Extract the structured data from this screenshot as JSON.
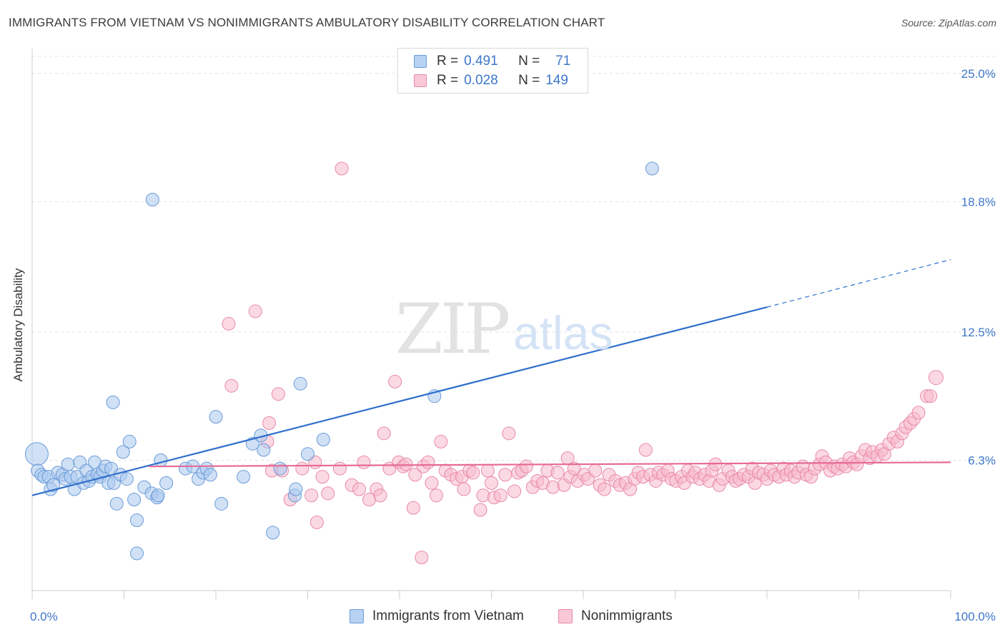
{
  "title": "IMMIGRANTS FROM VIETNAM VS NONIMMIGRANTS AMBULATORY DISABILITY CORRELATION CHART",
  "source": "Source: ZipAtlas.com",
  "watermark": {
    "zip": "ZIP",
    "atlas": "atlas"
  },
  "legend": {
    "rows": [
      {
        "r_label": "R =",
        "r_value": "0.491",
        "n_label": "N =",
        "n_value": "71"
      },
      {
        "r_label": "R =",
        "r_value": "0.028",
        "n_label": "N =",
        "n_value": "149"
      }
    ]
  },
  "colors": {
    "blue_fill": "#a9c9ef",
    "blue_stroke": "#6b9bd8",
    "blue_line": "#2f6fcc",
    "pink_fill": "#f7b9cc",
    "pink_stroke": "#e889a8",
    "pink_line": "#e76a95",
    "grid": "#e4e4e4",
    "tick_label": "#3d77c9"
  },
  "chart_data": {
    "type": "scatter",
    "title": "IMMIGRANTS FROM VIETNAM VS NONIMMIGRANTS AMBULATORY DISABILITY CORRELATION CHART",
    "xlabel": "",
    "ylabel": "Ambulatory Disability",
    "xlim": [
      0,
      100
    ],
    "ylim": [
      0,
      26.2
    ],
    "x_tick_labels": [
      "0.0%",
      "100.0%"
    ],
    "y_ticks": [
      6.3,
      12.5,
      18.8,
      25.0
    ],
    "y_tick_labels": [
      "6.3%",
      "12.5%",
      "18.8%",
      "25.0%"
    ],
    "grid": true,
    "legend_position": "top-center",
    "series": [
      {
        "name": "Immigrants from Vietnam",
        "R": 0.491,
        "N": 71,
        "trend": {
          "x_start": 0,
          "y_start": 4.6,
          "x_solid_end": 80,
          "y_solid_end": 13.7,
          "x_dash_end": 100,
          "y_dash_end": 16.0
        },
        "points": [
          [
            0.5,
            6.6,
            16
          ],
          [
            0.6,
            5.8,
            9
          ],
          [
            1.0,
            5.6,
            9
          ],
          [
            1.3,
            5.5,
            9
          ],
          [
            1.8,
            5.5,
            9
          ],
          [
            2.0,
            4.9,
            9
          ],
          [
            2.3,
            5.1,
            9
          ],
          [
            2.8,
            5.7,
            9
          ],
          [
            3.3,
            5.6,
            9
          ],
          [
            3.6,
            5.4,
            9
          ],
          [
            3.9,
            6.1,
            9
          ],
          [
            4.2,
            5.5,
            9
          ],
          [
            4.6,
            4.9,
            9
          ],
          [
            4.9,
            5.5,
            9
          ],
          [
            5.2,
            6.2,
            9
          ],
          [
            5.6,
            5.2,
            9
          ],
          [
            5.9,
            5.8,
            9
          ],
          [
            6.2,
            5.3,
            9
          ],
          [
            6.5,
            5.5,
            9
          ],
          [
            6.8,
            6.2,
            9
          ],
          [
            7.1,
            5.6,
            9
          ],
          [
            7.4,
            5.5,
            9
          ],
          [
            7.7,
            5.8,
            9
          ],
          [
            8.0,
            6.0,
            9
          ],
          [
            8.3,
            5.2,
            9
          ],
          [
            8.6,
            5.9,
            9
          ],
          [
            8.8,
            9.1,
            9
          ],
          [
            8.9,
            5.2,
            9
          ],
          [
            9.2,
            4.2,
            9
          ],
          [
            9.6,
            5.6,
            9
          ],
          [
            9.9,
            6.7,
            9
          ],
          [
            10.3,
            5.4,
            9
          ],
          [
            10.6,
            7.2,
            9
          ],
          [
            11.1,
            4.4,
            9
          ],
          [
            11.4,
            3.4,
            9
          ],
          [
            11.4,
            1.8,
            9
          ],
          [
            12.2,
            5.0,
            9
          ],
          [
            13.0,
            4.7,
            9
          ],
          [
            13.1,
            18.9,
            9
          ],
          [
            13.6,
            4.5,
            9
          ],
          [
            13.7,
            4.6,
            9
          ],
          [
            14.0,
            6.3,
            9
          ],
          [
            14.6,
            5.2,
            9
          ],
          [
            16.7,
            5.9,
            9
          ],
          [
            17.5,
            6.0,
            9
          ],
          [
            18.1,
            5.4,
            9
          ],
          [
            18.6,
            5.7,
            9
          ],
          [
            19.0,
            5.9,
            9
          ],
          [
            19.4,
            5.6,
            9
          ],
          [
            20.0,
            8.4,
            9
          ],
          [
            20.6,
            4.2,
            9
          ],
          [
            23.0,
            5.5,
            9
          ],
          [
            24.0,
            7.1,
            9
          ],
          [
            24.9,
            7.5,
            9
          ],
          [
            25.2,
            6.8,
            9
          ],
          [
            26.2,
            2.8,
            9
          ],
          [
            27.0,
            5.9,
            9
          ],
          [
            28.6,
            4.6,
            9
          ],
          [
            28.7,
            4.9,
            9
          ],
          [
            29.2,
            10.0,
            9
          ],
          [
            30.0,
            6.6,
            9
          ],
          [
            31.7,
            7.3,
            9
          ],
          [
            43.8,
            9.4,
            9
          ],
          [
            67.5,
            20.4,
            9
          ]
        ]
      },
      {
        "name": "Nonimmigrants",
        "R": 0.028,
        "N": 149,
        "trend": {
          "x_start": 12.7,
          "y_start": 6.0,
          "x_end": 100,
          "y_end": 6.2
        },
        "points": [
          [
            21.4,
            12.9,
            9
          ],
          [
            21.7,
            9.9,
            9
          ],
          [
            24.3,
            13.5,
            9
          ],
          [
            25.6,
            7.2,
            9
          ],
          [
            25.8,
            8.1,
            9
          ],
          [
            26.1,
            5.8,
            9
          ],
          [
            26.8,
            9.5,
            9
          ],
          [
            27.2,
            5.8,
            9
          ],
          [
            28.1,
            4.4,
            9
          ],
          [
            29.4,
            5.9,
            9
          ],
          [
            30.4,
            4.6,
            9
          ],
          [
            30.8,
            6.2,
            9
          ],
          [
            31.0,
            3.3,
            9
          ],
          [
            31.6,
            5.5,
            9
          ],
          [
            32.2,
            4.7,
            9
          ],
          [
            33.5,
            5.9,
            9
          ],
          [
            33.7,
            20.4,
            9
          ],
          [
            34.8,
            5.1,
            9
          ],
          [
            35.6,
            4.9,
            9
          ],
          [
            36.1,
            6.2,
            9
          ],
          [
            36.7,
            4.4,
            9
          ],
          [
            37.5,
            4.9,
            9
          ],
          [
            37.9,
            4.6,
            9
          ],
          [
            38.3,
            7.6,
            9
          ],
          [
            38.9,
            5.9,
            9
          ],
          [
            39.5,
            10.1,
            9
          ],
          [
            39.9,
            6.2,
            9
          ],
          [
            40.4,
            6.0,
            9
          ],
          [
            40.7,
            6.1,
            9
          ],
          [
            41.5,
            4.0,
            9
          ],
          [
            41.7,
            5.6,
            9
          ],
          [
            42.4,
            1.6,
            9
          ],
          [
            42.6,
            6.0,
            9
          ],
          [
            43.1,
            6.2,
            9
          ],
          [
            43.5,
            5.2,
            9
          ],
          [
            44.0,
            4.6,
            9
          ],
          [
            44.5,
            7.2,
            9
          ],
          [
            45.0,
            5.8,
            9
          ],
          [
            45.6,
            5.6,
            9
          ],
          [
            46.2,
            5.4,
            9
          ],
          [
            46.8,
            5.5,
            9
          ],
          [
            47.0,
            4.9,
            9
          ],
          [
            47.6,
            5.8,
            9
          ],
          [
            48.0,
            5.7,
            9
          ],
          [
            48.8,
            3.9,
            9
          ],
          [
            49.1,
            4.6,
            9
          ],
          [
            49.6,
            5.8,
            9
          ],
          [
            50.0,
            5.2,
            9
          ],
          [
            50.3,
            4.5,
            9
          ],
          [
            51.0,
            4.6,
            9
          ],
          [
            51.5,
            5.6,
            9
          ],
          [
            51.9,
            7.6,
            9
          ],
          [
            52.5,
            4.8,
            9
          ],
          [
            52.9,
            5.7,
            9
          ],
          [
            53.3,
            5.8,
            9
          ],
          [
            53.8,
            6.0,
            9
          ],
          [
            54.5,
            5.0,
            9
          ],
          [
            55.0,
            5.3,
            9
          ],
          [
            55.6,
            5.2,
            9
          ],
          [
            56.1,
            5.8,
            9
          ],
          [
            56.7,
            5.0,
            9
          ],
          [
            57.2,
            5.7,
            9
          ],
          [
            57.9,
            5.1,
            9
          ],
          [
            58.3,
            6.4,
            9
          ],
          [
            58.6,
            5.5,
            9
          ],
          [
            59.0,
            5.9,
            9
          ],
          [
            59.4,
            5.3,
            9
          ],
          [
            60.1,
            5.6,
            9
          ],
          [
            60.5,
            5.4,
            9
          ],
          [
            61.3,
            5.8,
            9
          ],
          [
            61.8,
            5.1,
            9
          ],
          [
            62.3,
            4.9,
            9
          ],
          [
            62.8,
            5.6,
            9
          ],
          [
            63.5,
            5.3,
            9
          ],
          [
            64.0,
            5.1,
            9
          ],
          [
            64.6,
            5.2,
            9
          ],
          [
            65.1,
            4.9,
            9
          ],
          [
            65.6,
            5.4,
            9
          ],
          [
            66.0,
            5.7,
            9
          ],
          [
            66.5,
            5.5,
            9
          ],
          [
            66.8,
            6.8,
            9
          ],
          [
            67.3,
            5.6,
            9
          ],
          [
            67.9,
            5.3,
            9
          ],
          [
            68.2,
            5.7,
            9
          ],
          [
            68.7,
            5.6,
            9
          ],
          [
            69.2,
            5.8,
            9
          ],
          [
            69.6,
            5.4,
            9
          ],
          [
            70.1,
            5.3,
            9
          ],
          [
            70.7,
            5.5,
            9
          ],
          [
            71.0,
            5.2,
            9
          ],
          [
            71.4,
            5.8,
            9
          ],
          [
            71.9,
            5.5,
            9
          ],
          [
            72.2,
            5.7,
            9
          ],
          [
            72.7,
            5.4,
            9
          ],
          [
            73.2,
            5.6,
            9
          ],
          [
            73.7,
            5.3,
            9
          ],
          [
            74.0,
            5.8,
            9
          ],
          [
            74.4,
            6.1,
            9
          ],
          [
            74.8,
            5.1,
            9
          ],
          [
            75.2,
            5.4,
            9
          ],
          [
            75.8,
            5.8,
            9
          ],
          [
            76.2,
            5.5,
            9
          ],
          [
            76.6,
            5.3,
            9
          ],
          [
            77.0,
            5.4,
            9
          ],
          [
            77.5,
            5.6,
            9
          ],
          [
            78.0,
            5.5,
            9
          ],
          [
            78.4,
            5.9,
            9
          ],
          [
            78.7,
            5.2,
            9
          ],
          [
            79.1,
            5.7,
            9
          ],
          [
            79.6,
            5.6,
            9
          ],
          [
            80.0,
            5.4,
            9
          ],
          [
            80.4,
            5.8,
            9
          ],
          [
            80.8,
            5.6,
            9
          ],
          [
            81.3,
            5.5,
            9
          ],
          [
            81.8,
            5.9,
            9
          ],
          [
            82.1,
            5.6,
            9
          ],
          [
            82.6,
            5.8,
            9
          ],
          [
            83.0,
            5.5,
            9
          ],
          [
            83.4,
            5.7,
            9
          ],
          [
            83.9,
            6.0,
            9
          ],
          [
            84.3,
            5.6,
            9
          ],
          [
            84.8,
            5.5,
            9
          ],
          [
            85.2,
            5.9,
            9
          ],
          [
            85.7,
            6.1,
            9
          ],
          [
            86.0,
            6.5,
            9
          ],
          [
            86.4,
            6.2,
            9
          ],
          [
            86.9,
            5.8,
            9
          ],
          [
            87.3,
            6.0,
            9
          ],
          [
            87.7,
            5.9,
            9
          ],
          [
            88.2,
            6.1,
            9
          ],
          [
            88.6,
            6.0,
            9
          ],
          [
            89.0,
            6.4,
            9
          ],
          [
            89.4,
            6.2,
            9
          ],
          [
            89.8,
            6.1,
            9
          ],
          [
            90.3,
            6.5,
            9
          ],
          [
            90.7,
            6.8,
            9
          ],
          [
            91.2,
            6.4,
            9
          ],
          [
            91.5,
            6.7,
            9
          ],
          [
            92.0,
            6.5,
            9
          ],
          [
            92.5,
            6.8,
            9
          ],
          [
            92.8,
            6.6,
            9
          ],
          [
            93.3,
            7.1,
            9
          ],
          [
            93.8,
            7.4,
            9
          ],
          [
            94.2,
            7.2,
            9
          ],
          [
            94.7,
            7.6,
            9
          ],
          [
            95.1,
            7.9,
            9
          ],
          [
            95.6,
            8.1,
            9
          ],
          [
            96.0,
            8.3,
            9
          ],
          [
            96.5,
            8.6,
            9
          ],
          [
            97.4,
            9.4,
            9
          ],
          [
            97.8,
            9.4,
            9
          ],
          [
            98.4,
            10.3,
            10
          ]
        ]
      }
    ]
  },
  "bottom_legend": [
    {
      "label": "Immigrants from Vietnam"
    },
    {
      "label": "Nonimmigrants"
    }
  ]
}
